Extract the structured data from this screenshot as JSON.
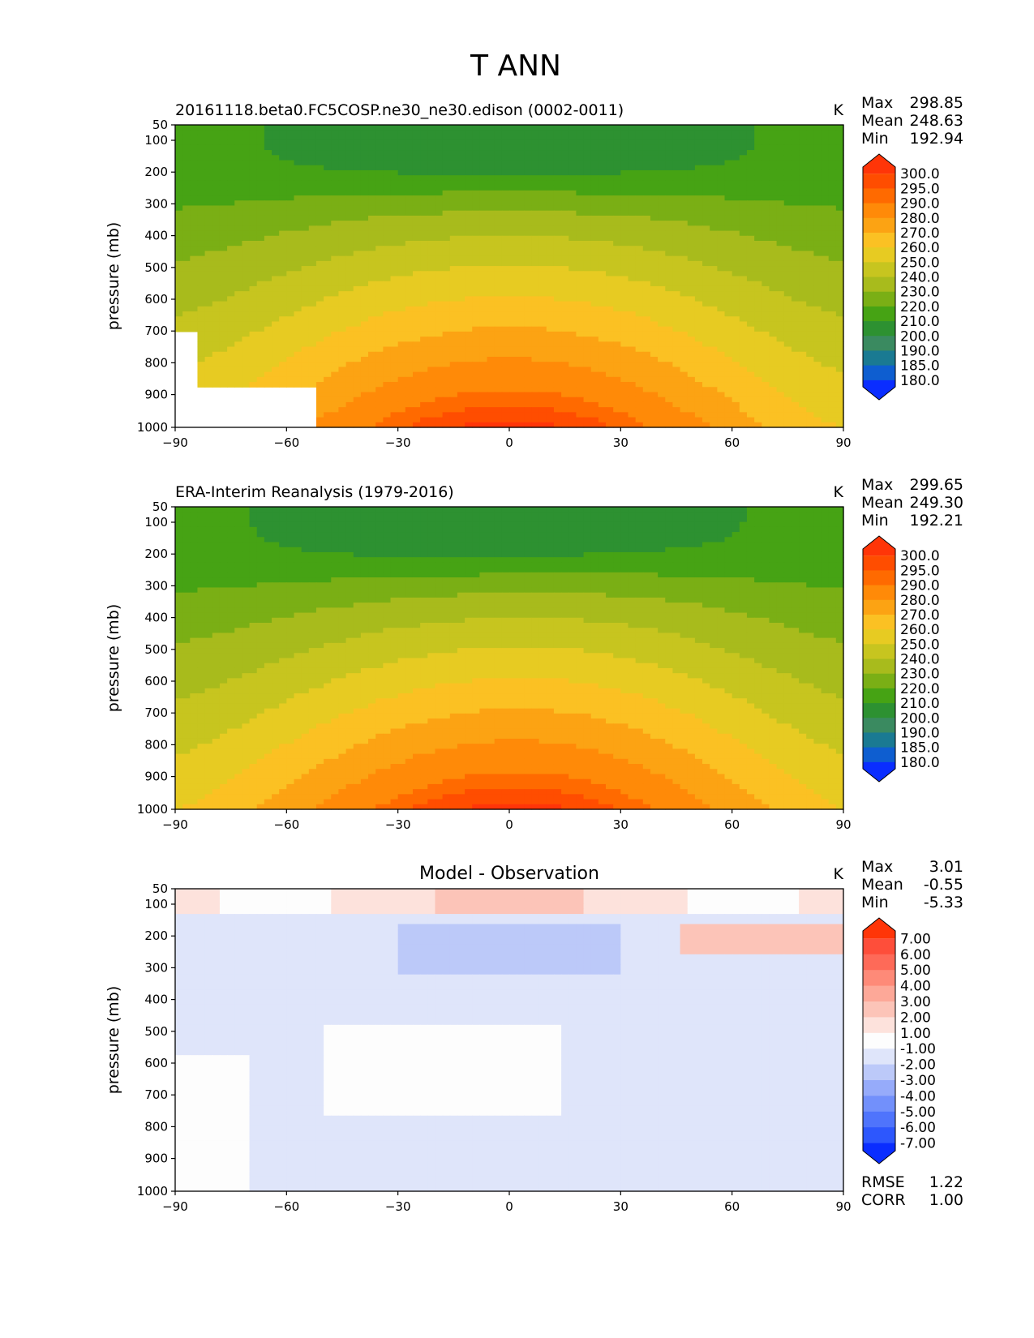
{
  "title": "T ANN",
  "chart_data": [
    {
      "type": "heatmap",
      "title": "20161118.beta0.FC5COSP.ne30_ne30.edison (0002-0011)",
      "units": "K",
      "stats": [
        [
          "Max",
          "298.85"
        ],
        [
          "Mean",
          "248.63"
        ],
        [
          "Min",
          "192.94"
        ]
      ],
      "ylabel": "pressure (mb)",
      "xlabel": "",
      "xlim": [
        -90,
        90
      ],
      "ylim": [
        1000,
        50
      ],
      "xticks": [
        "−90",
        "−60",
        "−30",
        "0",
        "30",
        "60",
        "90"
      ],
      "yticks": [
        "50",
        "100",
        "200",
        "300",
        "400",
        "500",
        "600",
        "700",
        "800",
        "900",
        "1000"
      ],
      "colorbar": {
        "labels": [
          "300.0",
          "295.0",
          "290.0",
          "280.0",
          "270.0",
          "260.0",
          "250.0",
          "240.0",
          "230.0",
          "220.0",
          "210.0",
          "200.0",
          "190.0",
          "185.0",
          "180.0"
        ],
        "colors": [
          "#ff3508",
          "#ff4d00",
          "#ff6a00",
          "#ff8a08",
          "#fca313",
          "#fbc123",
          "#e7cb22",
          "#c7c51f",
          "#a8bb1c",
          "#7aaf15",
          "#46a314",
          "#2d9131",
          "#3a8a60",
          "#1a7a92",
          "#0e5ed0",
          "#0a2dff"
        ]
      },
      "fields": [
        {
          "name": "model",
          "series": "model"
        }
      ]
    },
    {
      "type": "heatmap",
      "title": "ERA-Interim Reanalysis (1979-2016)",
      "units": "K",
      "stats": [
        [
          "Max",
          "299.65"
        ],
        [
          "Mean",
          "249.30"
        ],
        [
          "Min",
          "192.21"
        ]
      ],
      "ylabel": "pressure (mb)",
      "xlabel": "",
      "xlim": [
        -90,
        90
      ],
      "ylim": [
        1000,
        50
      ],
      "xticks": [
        "−90",
        "−60",
        "−30",
        "0",
        "30",
        "60",
        "90"
      ],
      "yticks": [
        "50",
        "100",
        "200",
        "300",
        "400",
        "500",
        "600",
        "700",
        "800",
        "900",
        "1000"
      ],
      "colorbar": {
        "labels": [
          "300.0",
          "295.0",
          "290.0",
          "280.0",
          "270.0",
          "260.0",
          "250.0",
          "240.0",
          "230.0",
          "220.0",
          "210.0",
          "200.0",
          "190.0",
          "185.0",
          "180.0"
        ],
        "colors": [
          "#ff3508",
          "#ff4d00",
          "#ff6a00",
          "#ff8a08",
          "#fca313",
          "#fbc123",
          "#e7cb22",
          "#c7c51f",
          "#a8bb1c",
          "#7aaf15",
          "#46a314",
          "#2d9131",
          "#3a8a60",
          "#1a7a92",
          "#0e5ed0",
          "#0a2dff"
        ]
      }
    },
    {
      "type": "heatmap",
      "title": "Model - Observation",
      "units": "K",
      "stats": [
        [
          "Max",
          "3.01"
        ],
        [
          "Mean",
          "-0.55"
        ],
        [
          "Min",
          "-5.33"
        ]
      ],
      "footer": [
        [
          "RMSE",
          "1.22"
        ],
        [
          "CORR",
          "1.00"
        ]
      ],
      "ylabel": "pressure (mb)",
      "xlabel": "",
      "xlim": [
        -90,
        90
      ],
      "ylim": [
        1000,
        50
      ],
      "xticks": [
        "−90",
        "−60",
        "−30",
        "0",
        "30",
        "60",
        "90"
      ],
      "yticks": [
        "50",
        "100",
        "200",
        "300",
        "400",
        "500",
        "600",
        "700",
        "800",
        "900",
        "1000"
      ],
      "colorbar": {
        "labels": [
          "7.00",
          "6.00",
          "5.00",
          "4.00",
          "3.00",
          "2.00",
          "1.00",
          "-1.00",
          "-2.00",
          "-3.00",
          "-4.00",
          "-5.00",
          "-6.00",
          "-7.00"
        ],
        "colors": [
          "#ff3508",
          "#fe4e3a",
          "#fe6a58",
          "#fe8a78",
          "#fda898",
          "#fcc4b8",
          "#fde2dc",
          "#fdfdfd",
          "#dfe5fa",
          "#bcc9f9",
          "#96abfa",
          "#7290fb",
          "#4f74fc",
          "#2d57fd",
          "#0a2dff"
        ]
      }
    }
  ]
}
